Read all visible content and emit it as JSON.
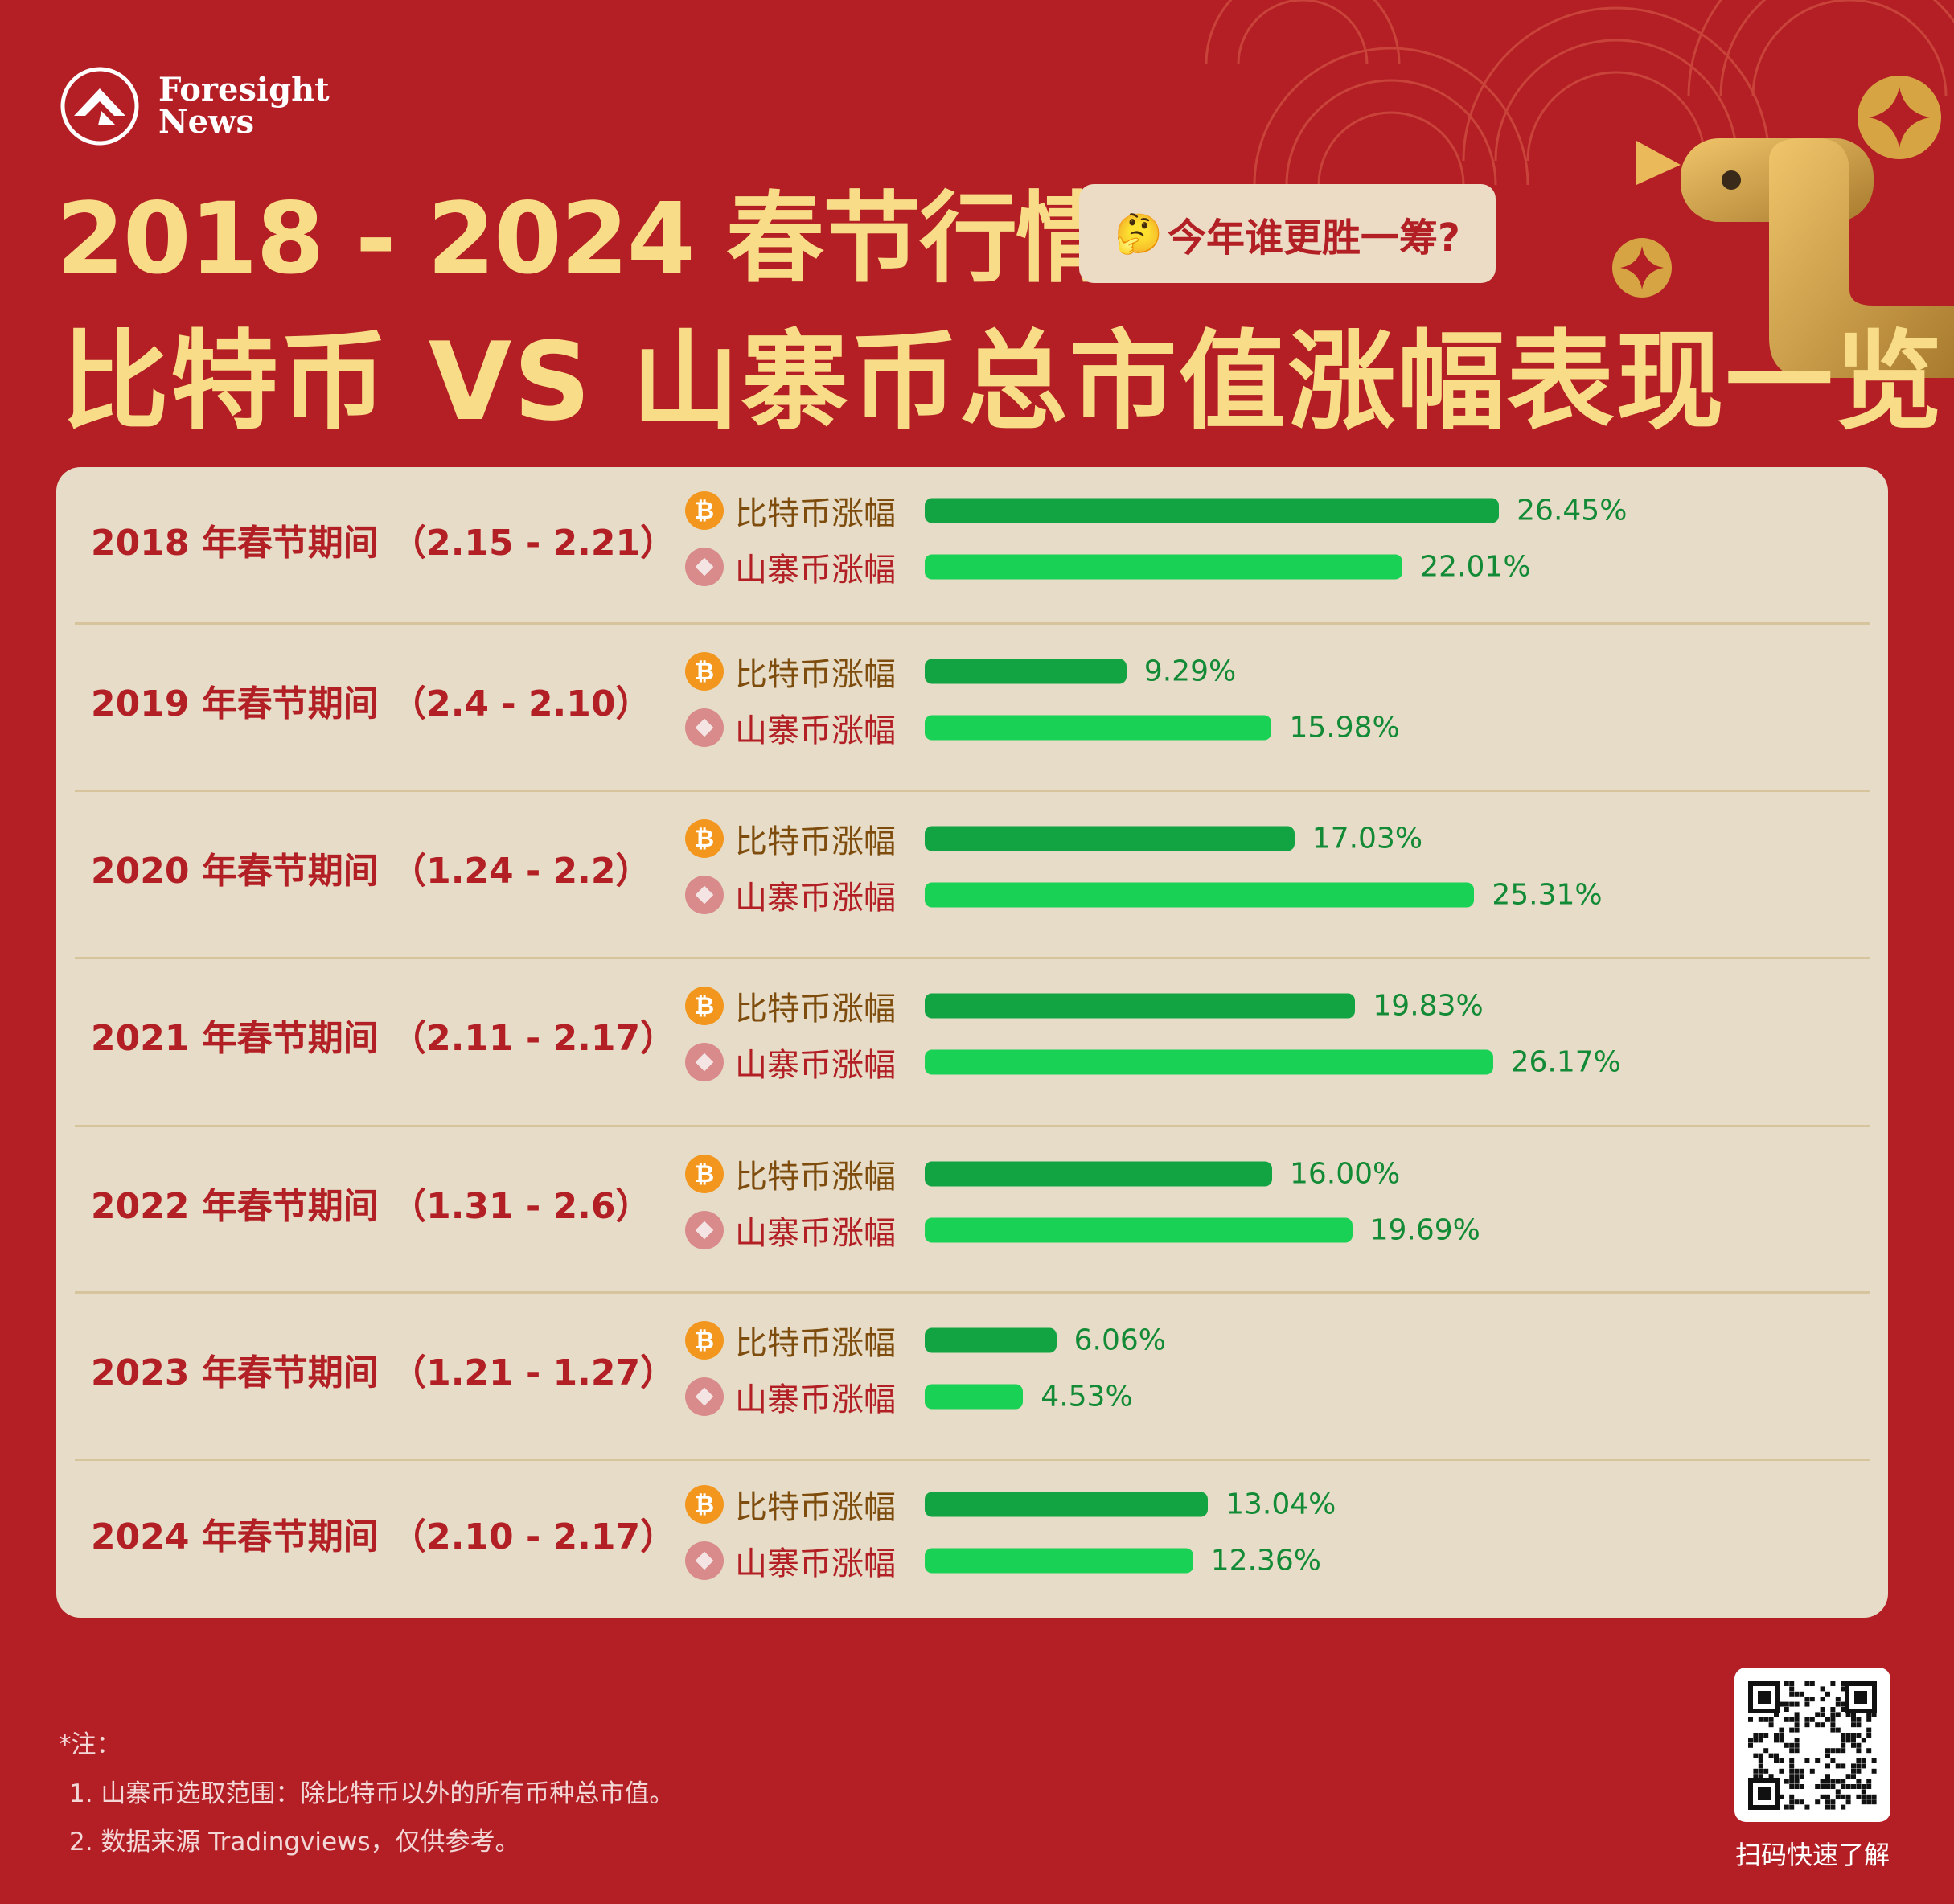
{
  "brand": {
    "line1": "Foresight",
    "line2": "News"
  },
  "header": {
    "title_line1": "2018 - 2024 春节行情",
    "badge_emoji": "🤔",
    "badge_text": "今年谁更胜一筹?",
    "title_line2": "比特币 VS 山寨币总市值涨幅表现一览"
  },
  "colors": {
    "background": "#b31f25",
    "title": "#f8dc87",
    "card": "#e6dcc7",
    "btc_bar": "#12a442",
    "alt_bar": "#19d155",
    "value_text": "#138a35",
    "period_text": "#b21f24"
  },
  "chart_data": {
    "type": "bar",
    "orientation": "horizontal",
    "unit": "%",
    "categories": [
      "2018 年春节期间 （2.15 - 2.21）",
      "2019 年春节期间 （2.4 - 2.10）",
      "2020 年春节期间 （1.24 - 2.2）",
      "2021 年春节期间 （2.11 - 2.17）",
      "2022 年春节期间 （1.31 - 2.6）",
      "2023 年春节期间 （1.21 - 1.27）",
      "2024 年春节期间 （2.10 - 2.17）"
    ],
    "series": [
      {
        "name": "比特币涨幅",
        "icon": "bitcoin-icon",
        "values": [
          26.45,
          9.29,
          17.03,
          19.83,
          16.0,
          6.06,
          13.04
        ],
        "labels": [
          "26.45%",
          "9.29%",
          "17.03%",
          "19.83%",
          "16.00%",
          "6.06%",
          "13.04%"
        ]
      },
      {
        "name": "山寨币涨幅",
        "icon": "altcoin-diamond-icon",
        "values": [
          22.01,
          15.98,
          25.31,
          26.17,
          19.69,
          4.53,
          12.36
        ],
        "labels": [
          "22.01%",
          "15.98%",
          "25.31%",
          "26.17%",
          "19.69%",
          "4.53%",
          "12.36%"
        ]
      }
    ],
    "grid": false,
    "legend": "none"
  },
  "footer": {
    "note_title": "*注：",
    "notes": [
      "1. 山寨币选取范围：除比特币以外的所有币种总市值。",
      "2. 数据来源 Tradingviews，仅供参考。"
    ],
    "qr_caption": "扫码快速了解"
  }
}
